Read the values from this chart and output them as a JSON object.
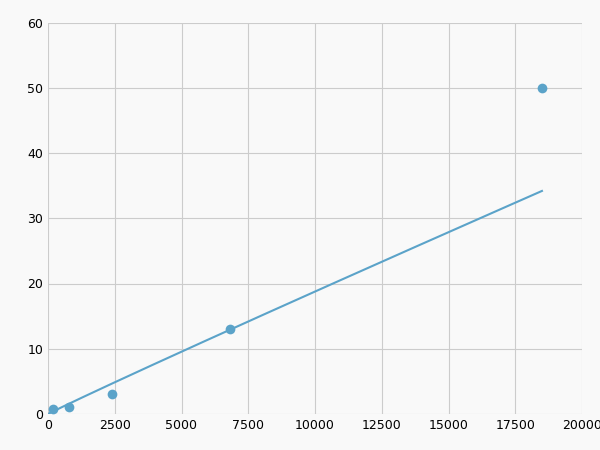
{
  "x": [
    200,
    800,
    2400,
    6800,
    18500
  ],
  "y": [
    0.7,
    1.0,
    3.0,
    13.0,
    50.0
  ],
  "line_color": "#5ba3c9",
  "marker_color": "#5ba3c9",
  "marker_size": 7,
  "line_width": 1.5,
  "xlim": [
    0,
    20000
  ],
  "ylim": [
    0,
    60
  ],
  "xticks": [
    0,
    2500,
    5000,
    7500,
    10000,
    12500,
    15000,
    17500,
    20000
  ],
  "yticks": [
    0,
    10,
    20,
    30,
    40,
    50,
    60
  ],
  "grid_color": "#cccccc",
  "background_color": "#ffffff",
  "figure_bg": "#f9f9f9"
}
